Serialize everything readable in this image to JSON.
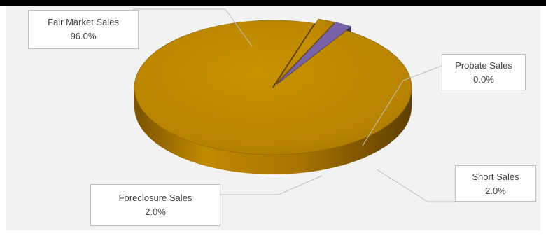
{
  "chart_data": {
    "type": "pie",
    "title": "",
    "categories": [
      "Fair Market Sales",
      "Probate Sales",
      "Short Sales",
      "Foreclosure Sales"
    ],
    "values": [
      96.0,
      0.0,
      2.0,
      2.0
    ],
    "labels": [
      {
        "name": "Fair Market Sales",
        "percent": "96.0%"
      },
      {
        "name": "Probate Sales",
        "percent": "0.0%"
      },
      {
        "name": "Short Sales",
        "percent": "2.0%"
      },
      {
        "name": "Foreclosure Sales",
        "percent": "2.0%"
      }
    ],
    "colors": [
      "#c08a00",
      "#c08a00",
      "#c08a00",
      "#7a62a8"
    ],
    "style": "3d-pie",
    "legend": "none"
  }
}
